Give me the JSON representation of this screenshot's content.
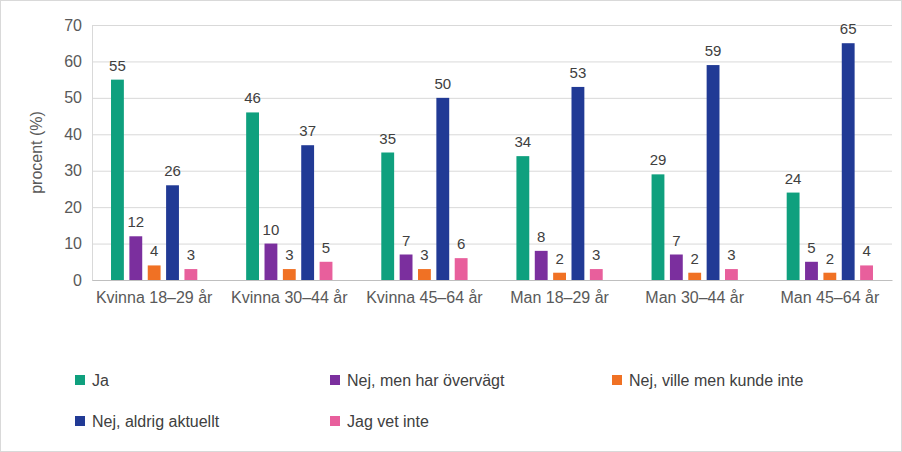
{
  "chart_data": {
    "type": "bar",
    "y_label": "procent (%)",
    "categories": [
      "Kvinna 18–29 år",
      "Kvinna 30–44 år",
      "Kvinna 45–64 år",
      "Man 18–29 år",
      "Man 30–44 år",
      "Man 45–64 år"
    ],
    "series": [
      {
        "name": "Ja",
        "color": "#0fa07e",
        "values": [
          55,
          46,
          35,
          34,
          29,
          24
        ]
      },
      {
        "name": "Nej, men har övervägt",
        "color": "#7b2f9e",
        "values": [
          12,
          10,
          7,
          8,
          7,
          5
        ]
      },
      {
        "name": "Nej, ville men kunde inte",
        "color": "#f07124",
        "values": [
          4,
          3,
          3,
          2,
          2,
          2
        ]
      },
      {
        "name": "Nej, aldrig aktuellt",
        "color": "#213a95",
        "values": [
          26,
          37,
          50,
          53,
          59,
          65
        ]
      },
      {
        "name": "Jag vet inte",
        "color": "#e85f9c",
        "values": [
          3,
          5,
          6,
          3,
          3,
          4
        ]
      }
    ],
    "ylim": [
      0,
      70
    ],
    "yticks": [
      0,
      10,
      20,
      30,
      40,
      50,
      60,
      70
    ],
    "grid": true,
    "legend": "bottom",
    "data_labels": true
  }
}
